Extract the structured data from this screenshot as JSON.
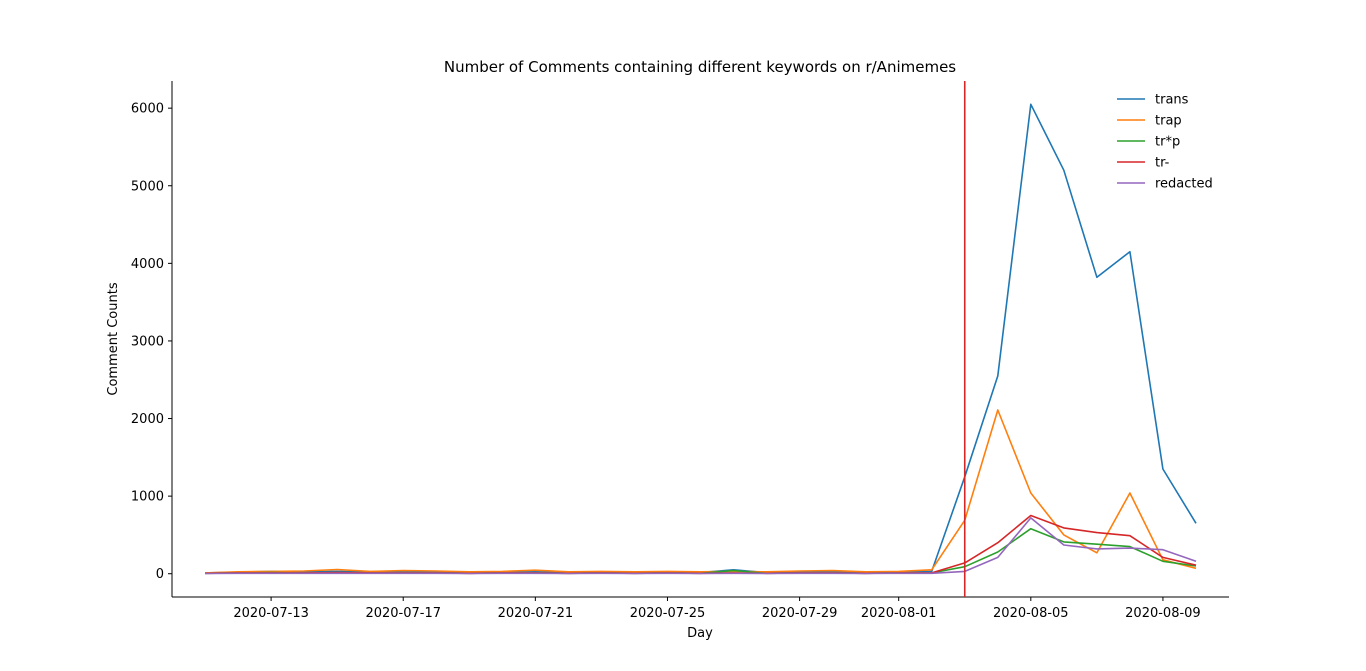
{
  "chart_data": {
    "type": "line",
    "title": "Number of Comments containing different keywords on r/Animemes",
    "xlabel": "Day",
    "ylabel": "Comment Counts",
    "x": [
      "2020-07-11",
      "2020-07-12",
      "2020-07-13",
      "2020-07-14",
      "2020-07-15",
      "2020-07-16",
      "2020-07-17",
      "2020-07-18",
      "2020-07-19",
      "2020-07-20",
      "2020-07-21",
      "2020-07-22",
      "2020-07-23",
      "2020-07-24",
      "2020-07-25",
      "2020-07-26",
      "2020-07-27",
      "2020-07-28",
      "2020-07-29",
      "2020-07-30",
      "2020-07-31",
      "2020-08-01",
      "2020-08-02",
      "2020-08-03",
      "2020-08-04",
      "2020-08-05",
      "2020-08-06",
      "2020-08-07",
      "2020-08-08",
      "2020-08-09",
      "2020-08-10"
    ],
    "xlim": [
      "2020-07-10",
      "2020-08-11"
    ],
    "xticks": [
      "2020-07-13",
      "2020-07-17",
      "2020-07-21",
      "2020-07-25",
      "2020-07-29",
      "2020-08-01",
      "2020-08-05",
      "2020-08-09"
    ],
    "ylim": [
      -300,
      6350
    ],
    "yticks": [
      0,
      1000,
      2000,
      3000,
      4000,
      5000,
      6000
    ],
    "vline": {
      "x": "2020-08-03",
      "color": "#d62728"
    },
    "legend_position": "top-right",
    "grid": false,
    "series": [
      {
        "name": "trans",
        "color": "#1f77b4",
        "values": [
          10,
          20,
          30,
          25,
          30,
          25,
          20,
          25,
          15,
          20,
          25,
          15,
          20,
          15,
          20,
          15,
          50,
          15,
          20,
          25,
          15,
          20,
          30,
          1250,
          2550,
          6050,
          5200,
          3820,
          4150,
          1350,
          650
        ]
      },
      {
        "name": "trap",
        "color": "#ff7f0e",
        "values": [
          10,
          25,
          30,
          35,
          55,
          30,
          40,
          35,
          25,
          30,
          45,
          25,
          30,
          25,
          30,
          25,
          30,
          25,
          35,
          40,
          25,
          30,
          50,
          690,
          2110,
          1040,
          500,
          270,
          1040,
          180,
          70
        ]
      },
      {
        "name": "tr*p",
        "color": "#2ca02c",
        "values": [
          5,
          10,
          15,
          10,
          15,
          10,
          10,
          10,
          5,
          10,
          10,
          5,
          10,
          5,
          10,
          5,
          40,
          5,
          10,
          10,
          5,
          10,
          10,
          90,
          280,
          580,
          410,
          380,
          350,
          160,
          100
        ]
      },
      {
        "name": "tr-",
        "color": "#d62728",
        "values": [
          5,
          10,
          10,
          10,
          15,
          10,
          10,
          10,
          5,
          10,
          10,
          5,
          10,
          5,
          10,
          5,
          10,
          5,
          10,
          10,
          5,
          10,
          10,
          140,
          400,
          750,
          590,
          530,
          490,
          210,
          110
        ]
      },
      {
        "name": "redacted",
        "color": "#9467bd",
        "values": [
          3,
          5,
          5,
          5,
          5,
          5,
          5,
          5,
          3,
          5,
          5,
          3,
          5,
          3,
          5,
          3,
          5,
          3,
          5,
          5,
          3,
          5,
          5,
          30,
          210,
          720,
          370,
          320,
          330,
          310,
          160
        ]
      }
    ]
  }
}
